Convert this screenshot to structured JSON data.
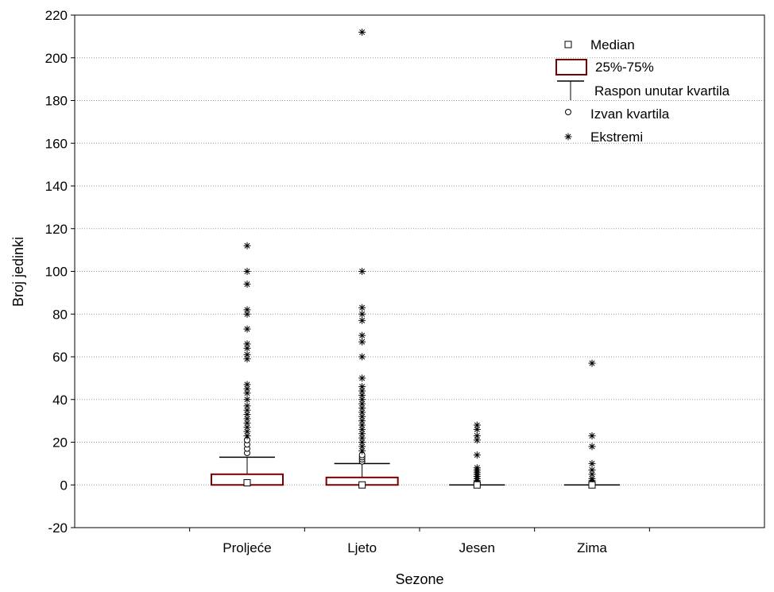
{
  "chart_data": {
    "type": "box",
    "xlabel": "Sezone",
    "ylabel": "Broj jedinki",
    "ylim": [
      -20,
      220
    ],
    "yticks": [
      -20,
      0,
      20,
      40,
      60,
      80,
      100,
      120,
      140,
      160,
      180,
      200,
      220
    ],
    "grid": "horizontal dotted",
    "legend_position": "top-right",
    "box_color": "#7a0000",
    "categories": [
      "Proljeće",
      "Ljeto",
      "Jesen",
      "Zima"
    ],
    "series": [
      {
        "category": "Proljeće",
        "median": 1,
        "q1": 0,
        "q3": 5,
        "whisker_low": 0,
        "whisker_high": 13,
        "outliers": [
          15,
          17,
          19,
          21
        ],
        "extremes": [
          23,
          25,
          27,
          29,
          31,
          33,
          35,
          37,
          40,
          43,
          45,
          47,
          59,
          61,
          64,
          66,
          73,
          80,
          82,
          94,
          100,
          112
        ]
      },
      {
        "category": "Ljeto",
        "median": 0,
        "q1": 0,
        "q3": 3.5,
        "whisker_low": 0,
        "whisker_high": 10,
        "outliers": [
          11,
          12,
          13,
          14
        ],
        "extremes": [
          16,
          18,
          20,
          22,
          24,
          26,
          28,
          30,
          32,
          34,
          36,
          38,
          40,
          42,
          44,
          46,
          50,
          60,
          67,
          70,
          77,
          80,
          83,
          100,
          212
        ]
      },
      {
        "category": "Jesen",
        "median": 0,
        "q1": 0,
        "q3": 0,
        "whisker_low": 0,
        "whisker_high": 0,
        "outliers": [],
        "extremes": [
          1,
          2,
          3,
          4,
          5,
          6,
          7,
          8,
          14,
          21,
          23,
          26,
          28
        ]
      },
      {
        "category": "Zima",
        "median": 0,
        "q1": 0,
        "q3": 0,
        "whisker_low": 0,
        "whisker_high": 0,
        "outliers": [],
        "extremes": [
          1,
          2,
          3,
          5,
          7,
          10,
          18,
          23,
          57
        ]
      }
    ],
    "legend": [
      {
        "symbol": "median-square",
        "label": "Median"
      },
      {
        "symbol": "box",
        "label": "25%-75%"
      },
      {
        "symbol": "whisker",
        "label": "Raspon unutar kvartila"
      },
      {
        "symbol": "circle",
        "label": "Izvan kvartila"
      },
      {
        "symbol": "star",
        "label": "Ekstremi"
      }
    ]
  }
}
